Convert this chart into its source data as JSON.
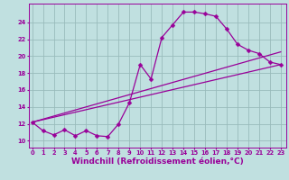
{
  "xlabel": "Windchill (Refroidissement éolien,°C)",
  "bg_color": "#c0e0e0",
  "line_color": "#990099",
  "grid_color": "#99bbbb",
  "x_ticks": [
    0,
    1,
    2,
    3,
    4,
    5,
    6,
    7,
    8,
    9,
    10,
    11,
    12,
    13,
    14,
    15,
    16,
    17,
    18,
    19,
    20,
    21,
    22,
    23
  ],
  "y_ticks": [
    10,
    12,
    14,
    16,
    18,
    20,
    22,
    24
  ],
  "xlim": [
    -0.3,
    23.5
  ],
  "ylim": [
    9.2,
    26.2
  ],
  "series1_x": [
    0,
    1,
    2,
    3,
    4,
    5,
    6,
    7,
    8,
    9,
    10,
    11,
    12,
    13,
    14,
    15,
    16,
    17,
    18,
    19,
    20,
    21,
    22,
    23
  ],
  "series1_y": [
    12.2,
    11.2,
    10.7,
    11.3,
    10.6,
    11.2,
    10.6,
    10.5,
    12.0,
    14.5,
    19.0,
    17.3,
    22.2,
    23.7,
    25.2,
    25.2,
    25.0,
    24.7,
    23.2,
    21.4,
    20.7,
    20.3,
    19.3,
    19.0
  ],
  "series2_x": [
    0,
    23
  ],
  "series2_y": [
    12.2,
    20.5
  ],
  "series3_x": [
    0,
    23
  ],
  "series3_y": [
    12.2,
    19.0
  ],
  "marker": "D",
  "markersize": 2.5,
  "linewidth": 0.9,
  "tick_fontsize": 4.8,
  "xlabel_fontsize": 6.5
}
